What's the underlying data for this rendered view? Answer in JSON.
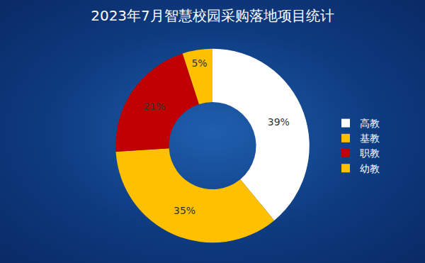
{
  "chart_data": {
    "type": "pie",
    "title": "2023年7月智慧校园采购落地项目统计",
    "categories": [
      "高教",
      "基教",
      "职教",
      "幼教"
    ],
    "values": [
      39,
      35,
      21,
      5
    ],
    "value_labels": [
      "39%",
      "35%",
      "21%",
      "5%"
    ],
    "colors": [
      "#ffffff",
      "#ffc000",
      "#c00000",
      "#ffc000"
    ],
    "data_labels": true,
    "legend": "right"
  }
}
